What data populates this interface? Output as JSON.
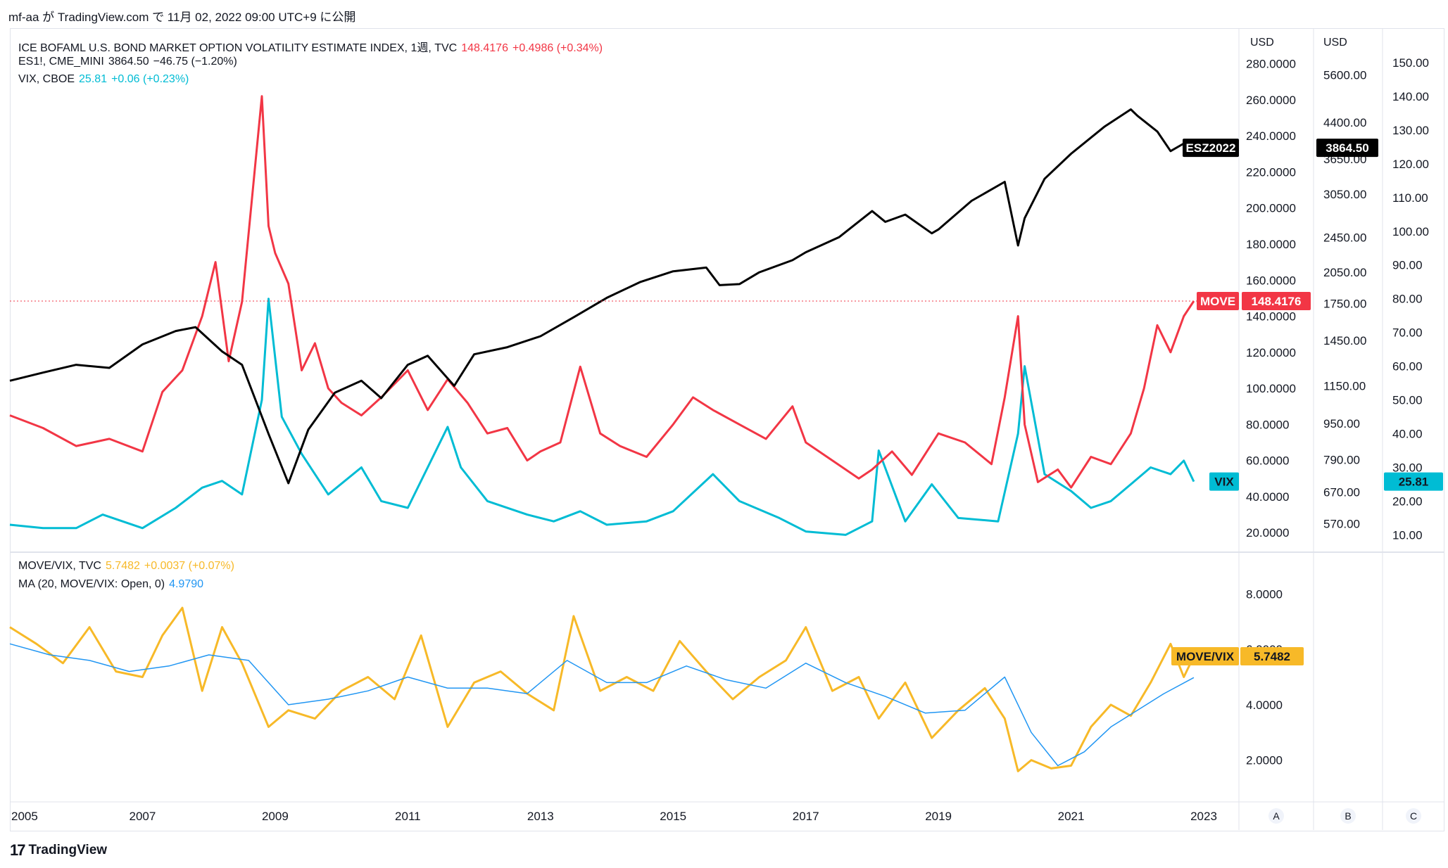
{
  "page": {
    "top_line": "mf-aa が TradingView.com で 11月 02, 2022 09:00 UTC+9 に公開",
    "footer_brand": "TradingView",
    "footer_mark": "17"
  },
  "colors": {
    "move": "#f23645",
    "vix": "#00bcd4",
    "es": "#000000",
    "ratio": "#f7b928",
    "ma": "#2196f3",
    "grid": "#f0f3fa",
    "axis_text": "#131722"
  },
  "legend": {
    "move": {
      "name": "ICE BOFAML U.S. BOND MARKET OPTION VOLATILITY ESTIMATE INDEX, 1週, TVC",
      "value": "148.4176",
      "change": "+0.4986 (+0.34%)"
    },
    "es": {
      "name": "ES1!, CME_MINI",
      "value": "3864.50",
      "change": "−46.75 (−1.20%)"
    },
    "vix": {
      "name": "VIX, CBOE",
      "value": "25.81",
      "change": "+0.06 (+0.23%)"
    },
    "ratio": {
      "name": "MOVE/VIX, TVC",
      "value": "5.7482",
      "change": "+0.0037 (+0.07%)"
    },
    "ma": {
      "name": "MA (20, MOVE/VIX: Open, 0)",
      "value": "4.9790"
    }
  },
  "scales": {
    "A_header": "USD",
    "B_header": "USD",
    "A_ticks": [
      "280.0000",
      "260.0000",
      "240.0000",
      "220.0000",
      "200.0000",
      "180.0000",
      "160.0000",
      "140.0000",
      "120.0000",
      "100.0000",
      "80.0000",
      "60.0000",
      "40.0000",
      "20.0000"
    ],
    "B_ticks": [
      "5600.00",
      "4400.00",
      "3650.00",
      "3050.00",
      "2450.00",
      "2050.00",
      "1750.00",
      "1450.00",
      "1150.00",
      "950.00",
      "790.00",
      "670.00",
      "570.00"
    ],
    "C_ticks": [
      "150.00",
      "140.00",
      "130.00",
      "120.00",
      "110.00",
      "100.00",
      "90.00",
      "80.00",
      "70.00",
      "60.00",
      "50.00",
      "40.00",
      "30.00",
      "20.00",
      "10.00"
    ],
    "ratio_ticks": [
      "8.0000",
      "6.0000",
      "4.0000",
      "2.0000"
    ],
    "buttons": [
      "A",
      "B",
      "C"
    ]
  },
  "tags": {
    "es_symbol": "ESZ2022",
    "es_value": "3864.50",
    "move_symbol": "MOVE",
    "move_value": "148.4176",
    "vix_symbol": "VIX",
    "vix_value": "25.81",
    "ratio_symbol": "MOVE/VIX",
    "ratio_value": "5.7482"
  },
  "chart_data": [
    {
      "type": "line",
      "title": "",
      "x_ticks": [
        "2005",
        "2007",
        "2009",
        "2011",
        "2013",
        "2015",
        "2017",
        "2019",
        "2021",
        "2023"
      ],
      "x_range": [
        2005,
        2023
      ],
      "series": [
        {
          "name": "ICE BOFAML U.S. BOND MARKET OPTION VOLATILITY ESTIMATE INDEX",
          "axis": "A",
          "ylim": [
            15,
            290
          ],
          "x": [
            2005.0,
            2005.5,
            2006.0,
            2006.5,
            2007.0,
            2007.3,
            2007.6,
            2007.9,
            2008.1,
            2008.3,
            2008.5,
            2008.8,
            2008.9,
            2009.0,
            2009.2,
            2009.4,
            2009.6,
            2009.8,
            2010.0,
            2010.3,
            2010.6,
            2011.0,
            2011.3,
            2011.6,
            2011.9,
            2012.2,
            2012.5,
            2012.8,
            2013.0,
            2013.3,
            2013.6,
            2013.9,
            2014.2,
            2014.6,
            2015.0,
            2015.3,
            2015.6,
            2016.0,
            2016.4,
            2016.8,
            2017.0,
            2017.4,
            2017.8,
            2018.0,
            2018.3,
            2018.6,
            2019.0,
            2019.4,
            2019.8,
            2020.0,
            2020.2,
            2020.3,
            2020.5,
            2020.8,
            2021.0,
            2021.3,
            2021.6,
            2021.9,
            2022.1,
            2022.3,
            2022.5,
            2022.7,
            2022.85
          ],
          "values": [
            85,
            78,
            68,
            72,
            65,
            98,
            110,
            140,
            170,
            115,
            148,
            262,
            190,
            175,
            158,
            110,
            125,
            100,
            92,
            85,
            95,
            110,
            88,
            105,
            92,
            75,
            78,
            60,
            65,
            70,
            112,
            75,
            68,
            62,
            80,
            95,
            88,
            80,
            72,
            90,
            70,
            60,
            50,
            55,
            65,
            52,
            75,
            70,
            58,
            95,
            140,
            80,
            48,
            55,
            45,
            62,
            58,
            75,
            100,
            135,
            120,
            140,
            148.4176
          ]
        },
        {
          "name": "ES1!, CME_MINI",
          "axis": "B",
          "ylim": [
            520,
            6500
          ],
          "x": [
            2005.0,
            2005.5,
            2006.0,
            2006.5,
            2007.0,
            2007.5,
            2007.8,
            2008.2,
            2008.5,
            2008.9,
            2009.2,
            2009.5,
            2009.9,
            2010.3,
            2010.6,
            2011.0,
            2011.3,
            2011.7,
            2012.0,
            2012.5,
            2013.0,
            2013.5,
            2014.0,
            2014.5,
            2015.0,
            2015.5,
            2015.7,
            2016.0,
            2016.3,
            2016.8,
            2017.0,
            2017.5,
            2018.0,
            2018.2,
            2018.5,
            2018.9,
            2019.0,
            2019.5,
            2020.0,
            2020.2,
            2020.3,
            2020.6,
            2021.0,
            2021.5,
            2021.9,
            2022.0,
            2022.3,
            2022.5,
            2022.7,
            2022.85
          ],
          "values": [
            1180,
            1230,
            1280,
            1260,
            1420,
            1520,
            1550,
            1370,
            1280,
            900,
            700,
            920,
            1110,
            1180,
            1080,
            1280,
            1340,
            1150,
            1350,
            1400,
            1480,
            1630,
            1800,
            1950,
            2060,
            2100,
            1920,
            1930,
            2050,
            2180,
            2270,
            2450,
            2800,
            2650,
            2750,
            2500,
            2550,
            2950,
            3250,
            2350,
            2700,
            3300,
            3750,
            4300,
            4700,
            4550,
            4200,
            3800,
            3950,
            3864.5
          ]
        },
        {
          "name": "VIX, CBOE",
          "axis": "C",
          "ylim": [
            8,
            155
          ],
          "x": [
            2005.0,
            2005.5,
            2006.0,
            2006.4,
            2007.0,
            2007.5,
            2007.9,
            2008.2,
            2008.5,
            2008.8,
            2008.9,
            2009.1,
            2009.4,
            2009.8,
            2010.3,
            2010.6,
            2011.0,
            2011.6,
            2011.8,
            2012.2,
            2012.8,
            2013.2,
            2013.6,
            2014.0,
            2014.6,
            2015.0,
            2015.6,
            2016.0,
            2016.6,
            2017.0,
            2017.6,
            2018.0,
            2018.1,
            2018.5,
            2018.9,
            2019.3,
            2019.9,
            2020.2,
            2020.3,
            2020.6,
            2021.0,
            2021.3,
            2021.6,
            2021.9,
            2022.2,
            2022.5,
            2022.7,
            2022.85
          ],
          "values": [
            13,
            12,
            12,
            16,
            12,
            18,
            24,
            26,
            22,
            50,
            80,
            45,
            34,
            22,
            30,
            20,
            18,
            42,
            30,
            20,
            16,
            14,
            17,
            13,
            14,
            17,
            28,
            20,
            15,
            11,
            10,
            14,
            35,
            14,
            25,
            15,
            14,
            40,
            60,
            28,
            23,
            18,
            20,
            25,
            30,
            28,
            32,
            25.81
          ]
        }
      ]
    },
    {
      "type": "line",
      "title": "",
      "x_ticks": [
        "2005",
        "2007",
        "2009",
        "2011",
        "2013",
        "2015",
        "2017",
        "2019",
        "2021",
        "2023"
      ],
      "ylim": [
        1,
        9
      ],
      "y_ticks": [
        8,
        6,
        4,
        2
      ],
      "series": [
        {
          "name": "MOVE/VIX, TVC",
          "x": [
            2005.0,
            2005.4,
            2005.8,
            2006.2,
            2006.6,
            2007.0,
            2007.3,
            2007.6,
            2007.9,
            2008.2,
            2008.5,
            2008.9,
            2009.2,
            2009.6,
            2010.0,
            2010.4,
            2010.8,
            2011.2,
            2011.6,
            2012.0,
            2012.4,
            2012.8,
            2013.2,
            2013.5,
            2013.9,
            2014.3,
            2014.7,
            2015.1,
            2015.5,
            2015.9,
            2016.3,
            2016.7,
            2017.0,
            2017.4,
            2017.8,
            2018.1,
            2018.5,
            2018.9,
            2019.3,
            2019.7,
            2020.0,
            2020.2,
            2020.4,
            2020.7,
            2021.0,
            2021.3,
            2021.6,
            2021.9,
            2022.2,
            2022.5,
            2022.7,
            2022.85
          ],
          "values": [
            6.8,
            6.2,
            5.5,
            6.8,
            5.2,
            5.0,
            6.5,
            7.5,
            4.5,
            6.8,
            5.5,
            3.2,
            3.8,
            3.5,
            4.5,
            5.0,
            4.2,
            6.5,
            3.2,
            4.8,
            5.2,
            4.4,
            3.8,
            7.2,
            4.5,
            5.0,
            4.5,
            6.3,
            5.2,
            4.2,
            5.0,
            5.6,
            6.8,
            4.5,
            5.0,
            3.5,
            4.8,
            2.8,
            3.8,
            4.6,
            3.5,
            1.6,
            2.0,
            1.7,
            1.8,
            3.2,
            4.0,
            3.6,
            4.8,
            6.2,
            5.0,
            5.7482
          ]
        },
        {
          "name": "MA (20, MOVE/VIX: Open, 0)",
          "x": [
            2005.0,
            2005.6,
            2006.2,
            2006.8,
            2007.4,
            2008.0,
            2008.6,
            2009.2,
            2009.8,
            2010.4,
            2011.0,
            2011.6,
            2012.2,
            2012.8,
            2013.4,
            2014.0,
            2014.6,
            2015.2,
            2015.8,
            2016.4,
            2017.0,
            2017.6,
            2018.2,
            2018.8,
            2019.4,
            2020.0,
            2020.4,
            2020.8,
            2021.2,
            2021.6,
            2022.0,
            2022.4,
            2022.85
          ],
          "values": [
            6.2,
            5.8,
            5.6,
            5.2,
            5.4,
            5.8,
            5.6,
            4.0,
            4.2,
            4.5,
            5.0,
            4.6,
            4.6,
            4.4,
            5.6,
            4.8,
            4.8,
            5.4,
            4.9,
            4.6,
            5.5,
            4.8,
            4.3,
            3.7,
            3.8,
            5.0,
            3.0,
            1.8,
            2.3,
            3.2,
            3.8,
            4.4,
            4.979
          ]
        }
      ]
    }
  ]
}
